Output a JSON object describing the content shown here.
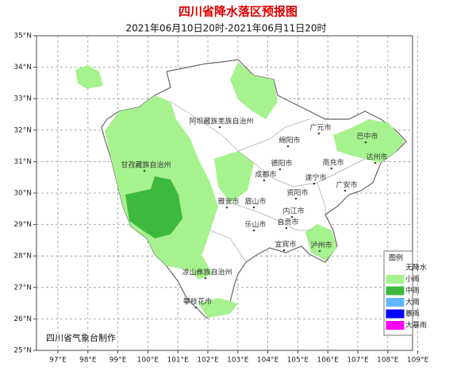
{
  "header": {
    "title": "四川省降水落区预报图",
    "subtitle": "2021年06月10日20时-2021年06月11日20时"
  },
  "lat_labels": [
    "35°N",
    "34°N",
    "33°N",
    "32°N",
    "31°N",
    "30°N",
    "29°N",
    "28°N",
    "27°N",
    "26°N",
    "25°N"
  ],
  "lon_labels": [
    "97°E",
    "98°E",
    "99°E",
    "100°E",
    "101°E",
    "102°E",
    "103°E",
    "104°E",
    "105°E",
    "106°E",
    "107°E",
    "108°E",
    "109°E"
  ],
  "regions": [
    "阿坝藏族羌族自治州",
    "广元市",
    "巴中市",
    "绵阳市",
    "甘孜藏族自治州",
    "德阳市",
    "南充市",
    "达州市",
    "成都市",
    "遂宁市",
    "广安市",
    "资阳市",
    "雅安市",
    "眉山市",
    "内江市",
    "乐山市",
    "自贡市",
    "宜宾市",
    "泸州市",
    "凉山彝族自治州",
    "攀枝花市"
  ],
  "legend": {
    "title": "图例",
    "items": [
      {
        "label": "无降水",
        "color": "#ffffff"
      },
      {
        "label": "小雨",
        "color": "#a6f28f"
      },
      {
        "label": "中雨",
        "color": "#3dba3d"
      },
      {
        "label": "大雨",
        "color": "#61b8ff"
      },
      {
        "label": "暴雨",
        "color": "#0000fe"
      },
      {
        "label": "大暴雨",
        "color": "#fa00fa"
      }
    ]
  },
  "credit": "四川省气象台制作"
}
